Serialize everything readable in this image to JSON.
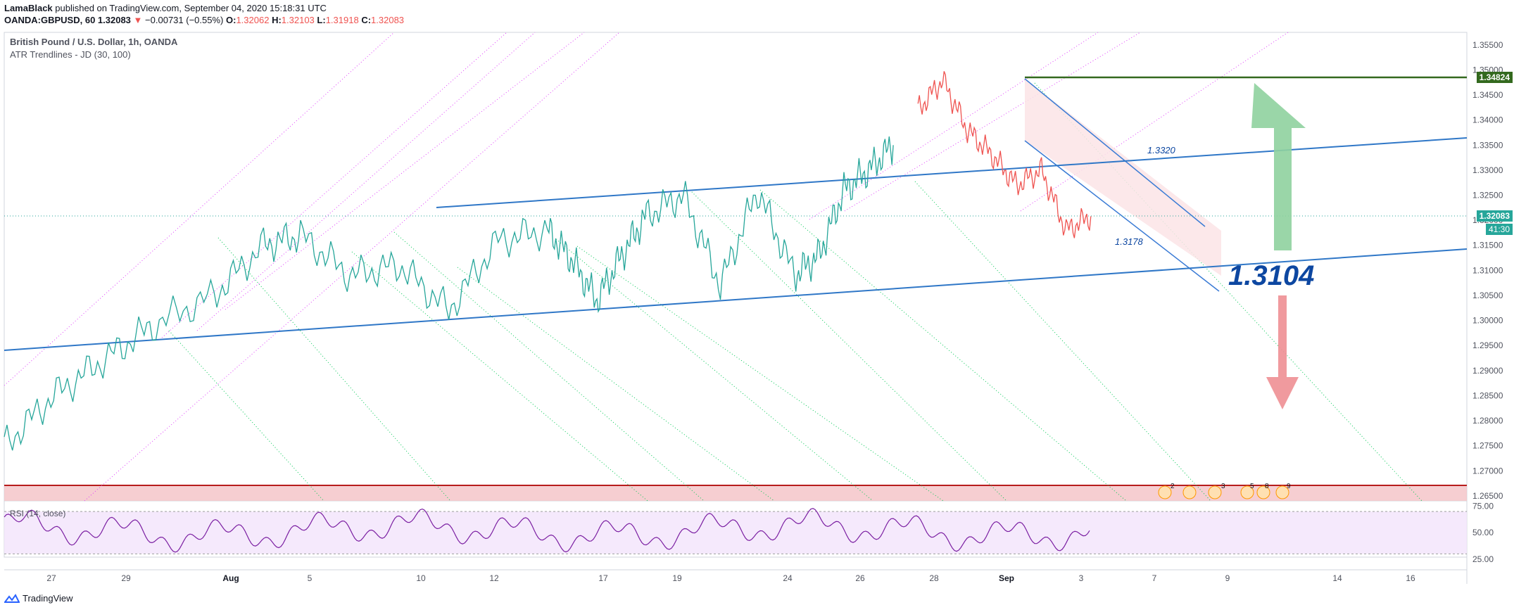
{
  "header": {
    "author": "LamaBlack",
    "published": " published on TradingView.com, September 04, 2020 15:18:31 UTC",
    "symbol": "OANDA:GBPUSD, 60",
    "last": "1.32083",
    "change": "−0.00731 (−0.55%)",
    "o_label": "O:",
    "o": "1.32062",
    "h_label": "H:",
    "h": "1.32103",
    "l_label": "L:",
    "l": "1.31918",
    "c_label": "C:",
    "c": "1.32083"
  },
  "main_title": "British Pound / U.S. Dollar, 1h, OANDA",
  "indicator": "ATR Trendlines - JD (30, 100)",
  "rsi_label": "RSI (14, close)",
  "footer": "TradingView",
  "price_tags": {
    "resistance": "1.34824",
    "last": "1.32083",
    "countdown": "41:30"
  },
  "annotations": {
    "channel_top": "1.3320",
    "channel_bottom": "1.3178",
    "target": "1.3104"
  },
  "event_icons": [
    "2",
    "3",
    "5",
    "8",
    "9"
  ],
  "colors": {
    "up": "#26a69a",
    "down": "#ef5350",
    "trend": "#3a7bd5",
    "resistance": "#2e7d32",
    "target": "#0d47a1",
    "magenta": "#e040fb",
    "green_dotted": "#00c853",
    "rsi": "#7b1fa2"
  },
  "chart_data": [
    {
      "type": "line",
      "title": "British Pound / U.S. Dollar, 1h, OANDA",
      "y_ticks": [
        1.355,
        1.35,
        1.345,
        1.34,
        1.335,
        1.33,
        1.325,
        1.32,
        1.315,
        1.31,
        1.305,
        1.3,
        1.295,
        1.29,
        1.285,
        1.28,
        1.275,
        1.27,
        1.265
      ],
      "ylim": [
        1.264,
        1.3575
      ],
      "x_ticks": [
        "27",
        "29",
        "Aug",
        "5",
        "10",
        "12",
        "17",
        "19",
        "24",
        "26",
        "28",
        "Sep",
        "3",
        "7",
        "9",
        "14",
        "16"
      ],
      "price_path_x": [
        0,
        4,
        8,
        12,
        17,
        21,
        24,
        28,
        32,
        36,
        40,
        44,
        46,
        48,
        50,
        52,
        55,
        58,
        61,
        64,
        66,
        68,
        70,
        72
      ],
      "price_path_y": [
        1.275,
        1.285,
        1.292,
        1.299,
        1.305,
        1.315,
        1.317,
        1.309,
        1.311,
        1.302,
        1.316,
        1.318,
        1.312,
        1.304,
        1.313,
        1.321,
        1.325,
        1.307,
        1.326,
        1.309,
        1.313,
        1.326,
        1.33,
        1.335
      ],
      "price_path_x2": [
        74,
        76,
        78,
        80,
        82,
        84,
        86,
        88
      ],
      "price_path_y2": [
        1.342,
        1.348,
        1.338,
        1.333,
        1.327,
        1.33,
        1.318,
        1.3208
      ],
      "trendlines": {
        "lower_channel": {
          "from": [
            1.294
          ],
          "to": [
            1.3145
          ]
        },
        "upper_channel": {
          "from": [
            1.3264
          ],
          "to": [
            1.3367
          ]
        },
        "resistance": 1.34824,
        "support_zone": [
          1.2645,
          1.2675
        ]
      },
      "target": 1.3104
    },
    {
      "type": "line",
      "title": "RSI (14, close)",
      "y_ticks": [
        75,
        50,
        25
      ],
      "ylim": [
        15,
        80
      ],
      "band": [
        30,
        70
      ]
    }
  ]
}
